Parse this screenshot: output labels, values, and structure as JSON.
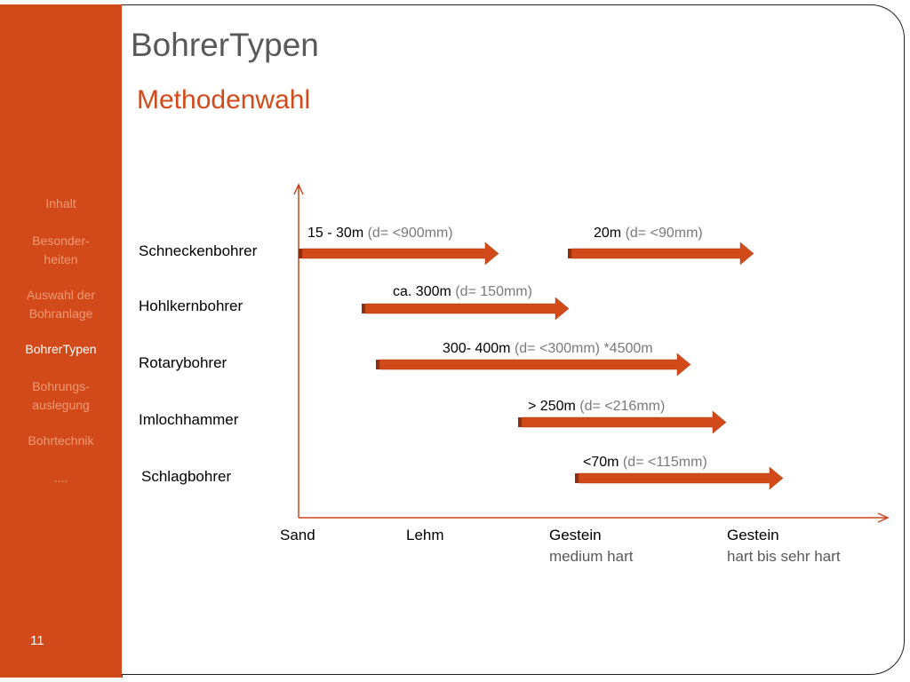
{
  "sidebar": {
    "items": [
      {
        "label": "Inhalt",
        "active": false
      },
      {
        "label": "Besonder-",
        "label2": "heiten",
        "active": false
      },
      {
        "label": "Auswahl der",
        "label2": "Bohranlage",
        "active": false
      },
      {
        "label": "BohrerTypen",
        "active": true
      },
      {
        "label": "Bohrungs-",
        "label2": "auslegung",
        "active": false
      },
      {
        "label": "Bohrtechnik",
        "active": false
      },
      {
        "label": "....",
        "active": false
      }
    ],
    "page_number": "11"
  },
  "title": "BohrerTypen",
  "subtitle": "Methodenwahl",
  "diagram": {
    "x_axis_categories": [
      {
        "label": "Sand",
        "sublabel": ""
      },
      {
        "label": "Lehm",
        "sublabel": ""
      },
      {
        "label": "Gestein",
        "sublabel": "medium hart"
      },
      {
        "label": "Gestein",
        "sublabel": "hart bis sehr hart"
      }
    ],
    "rows": [
      {
        "name": "Schneckenbohrer"
      },
      {
        "name": "Hohlkernbohrer"
      },
      {
        "name": "Rotarybohrer"
      },
      {
        "name": "Imlochhammer"
      },
      {
        "name": "Schlagbohrer"
      }
    ],
    "arrows": [
      {
        "row": "Schneckenbohrer",
        "depth": "15 - 30m",
        "detail": "(d= <900mm)"
      },
      {
        "row": "Schneckenbohrer",
        "depth": "20m",
        "detail": "(d= <90mm)"
      },
      {
        "row": "Hohlkernbohrer",
        "depth": "ca. 300m",
        "detail": "(d= 150mm)"
      },
      {
        "row": "Rotarybohrer",
        "depth": "300- 400m",
        "detail": "(d= <300mm) *4500m"
      },
      {
        "row": "Imlochhammer",
        "depth": "> 250m",
        "detail": "(d= <216mm)"
      },
      {
        "row": "Schlagbohrer",
        "depth": "<70m",
        "detail": "(d= <115mm)"
      }
    ],
    "colors": {
      "arrow": "#d24a1a",
      "axis": "#c8461b",
      "sidebar": "#d24a1a"
    }
  }
}
